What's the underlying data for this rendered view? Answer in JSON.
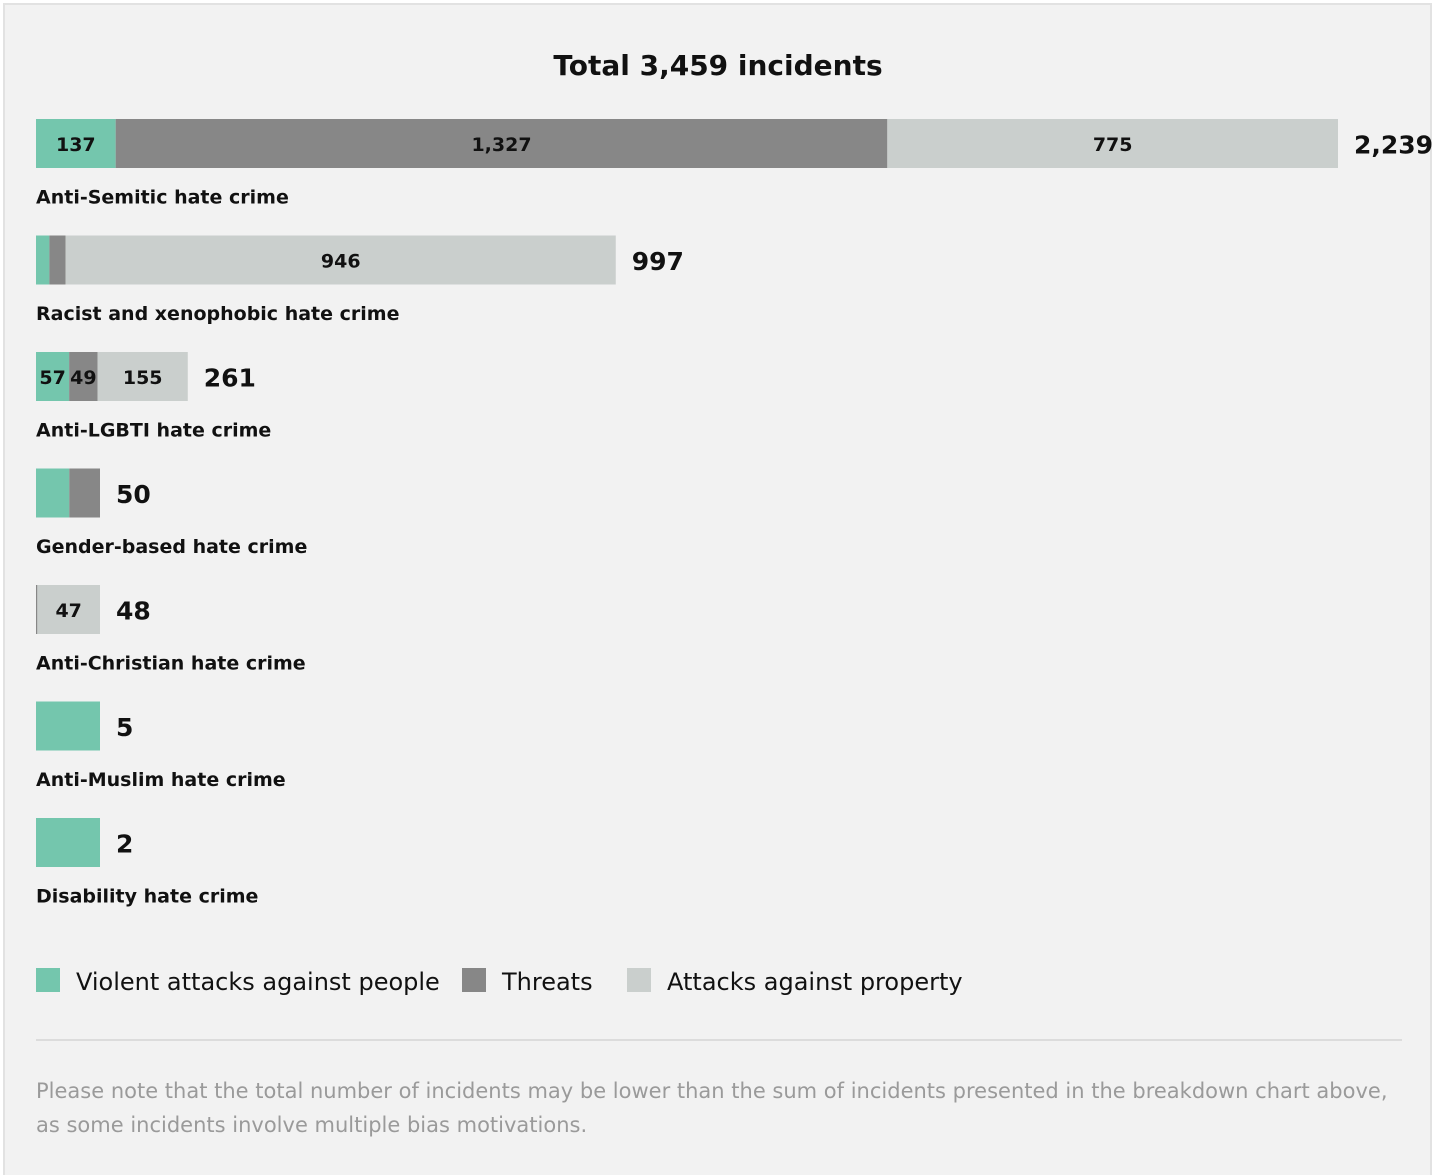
{
  "chart_data": {
    "type": "stacked-bar",
    "title": "Total 3,459 incidents",
    "categories": [
      "Anti-Semitic hate crime",
      "Racist and xenophobic hate crime",
      "Anti-LGBTI hate crime",
      "Gender-based hate crime",
      "Anti-Christian hate crime",
      "Anti-Muslim hate crime",
      "Disability hate crime"
    ],
    "series": [
      {
        "name": "Violent attacks against people",
        "color": "#74c6ad",
        "values": [
          137,
          23,
          57,
          26,
          0,
          5,
          2
        ],
        "value_labels": [
          "137",
          null,
          "57",
          null,
          null,
          null,
          null
        ]
      },
      {
        "name": "Threats",
        "color": "#878787",
        "values": [
          1327,
          28,
          49,
          24,
          1,
          0,
          0
        ],
        "value_labels": [
          "1,327",
          null,
          "49",
          null,
          null,
          null,
          null
        ]
      },
      {
        "name": "Attacks against property",
        "color": "#cacfcd",
        "values": [
          775,
          946,
          155,
          0,
          47,
          0,
          0
        ],
        "value_labels": [
          "775",
          "946",
          "155",
          null,
          "47",
          null,
          null
        ]
      }
    ],
    "totals": [
      2239,
      997,
      261,
      50,
      48,
      5,
      2
    ],
    "total_labels": [
      "2,239",
      "997",
      "261",
      "50",
      "48",
      "5",
      "2"
    ],
    "note": "Please note that the total number of incidents may be lower than the sum of incidents presented in the breakdown chart above, as some incidents involve multiple bias motivations."
  }
}
